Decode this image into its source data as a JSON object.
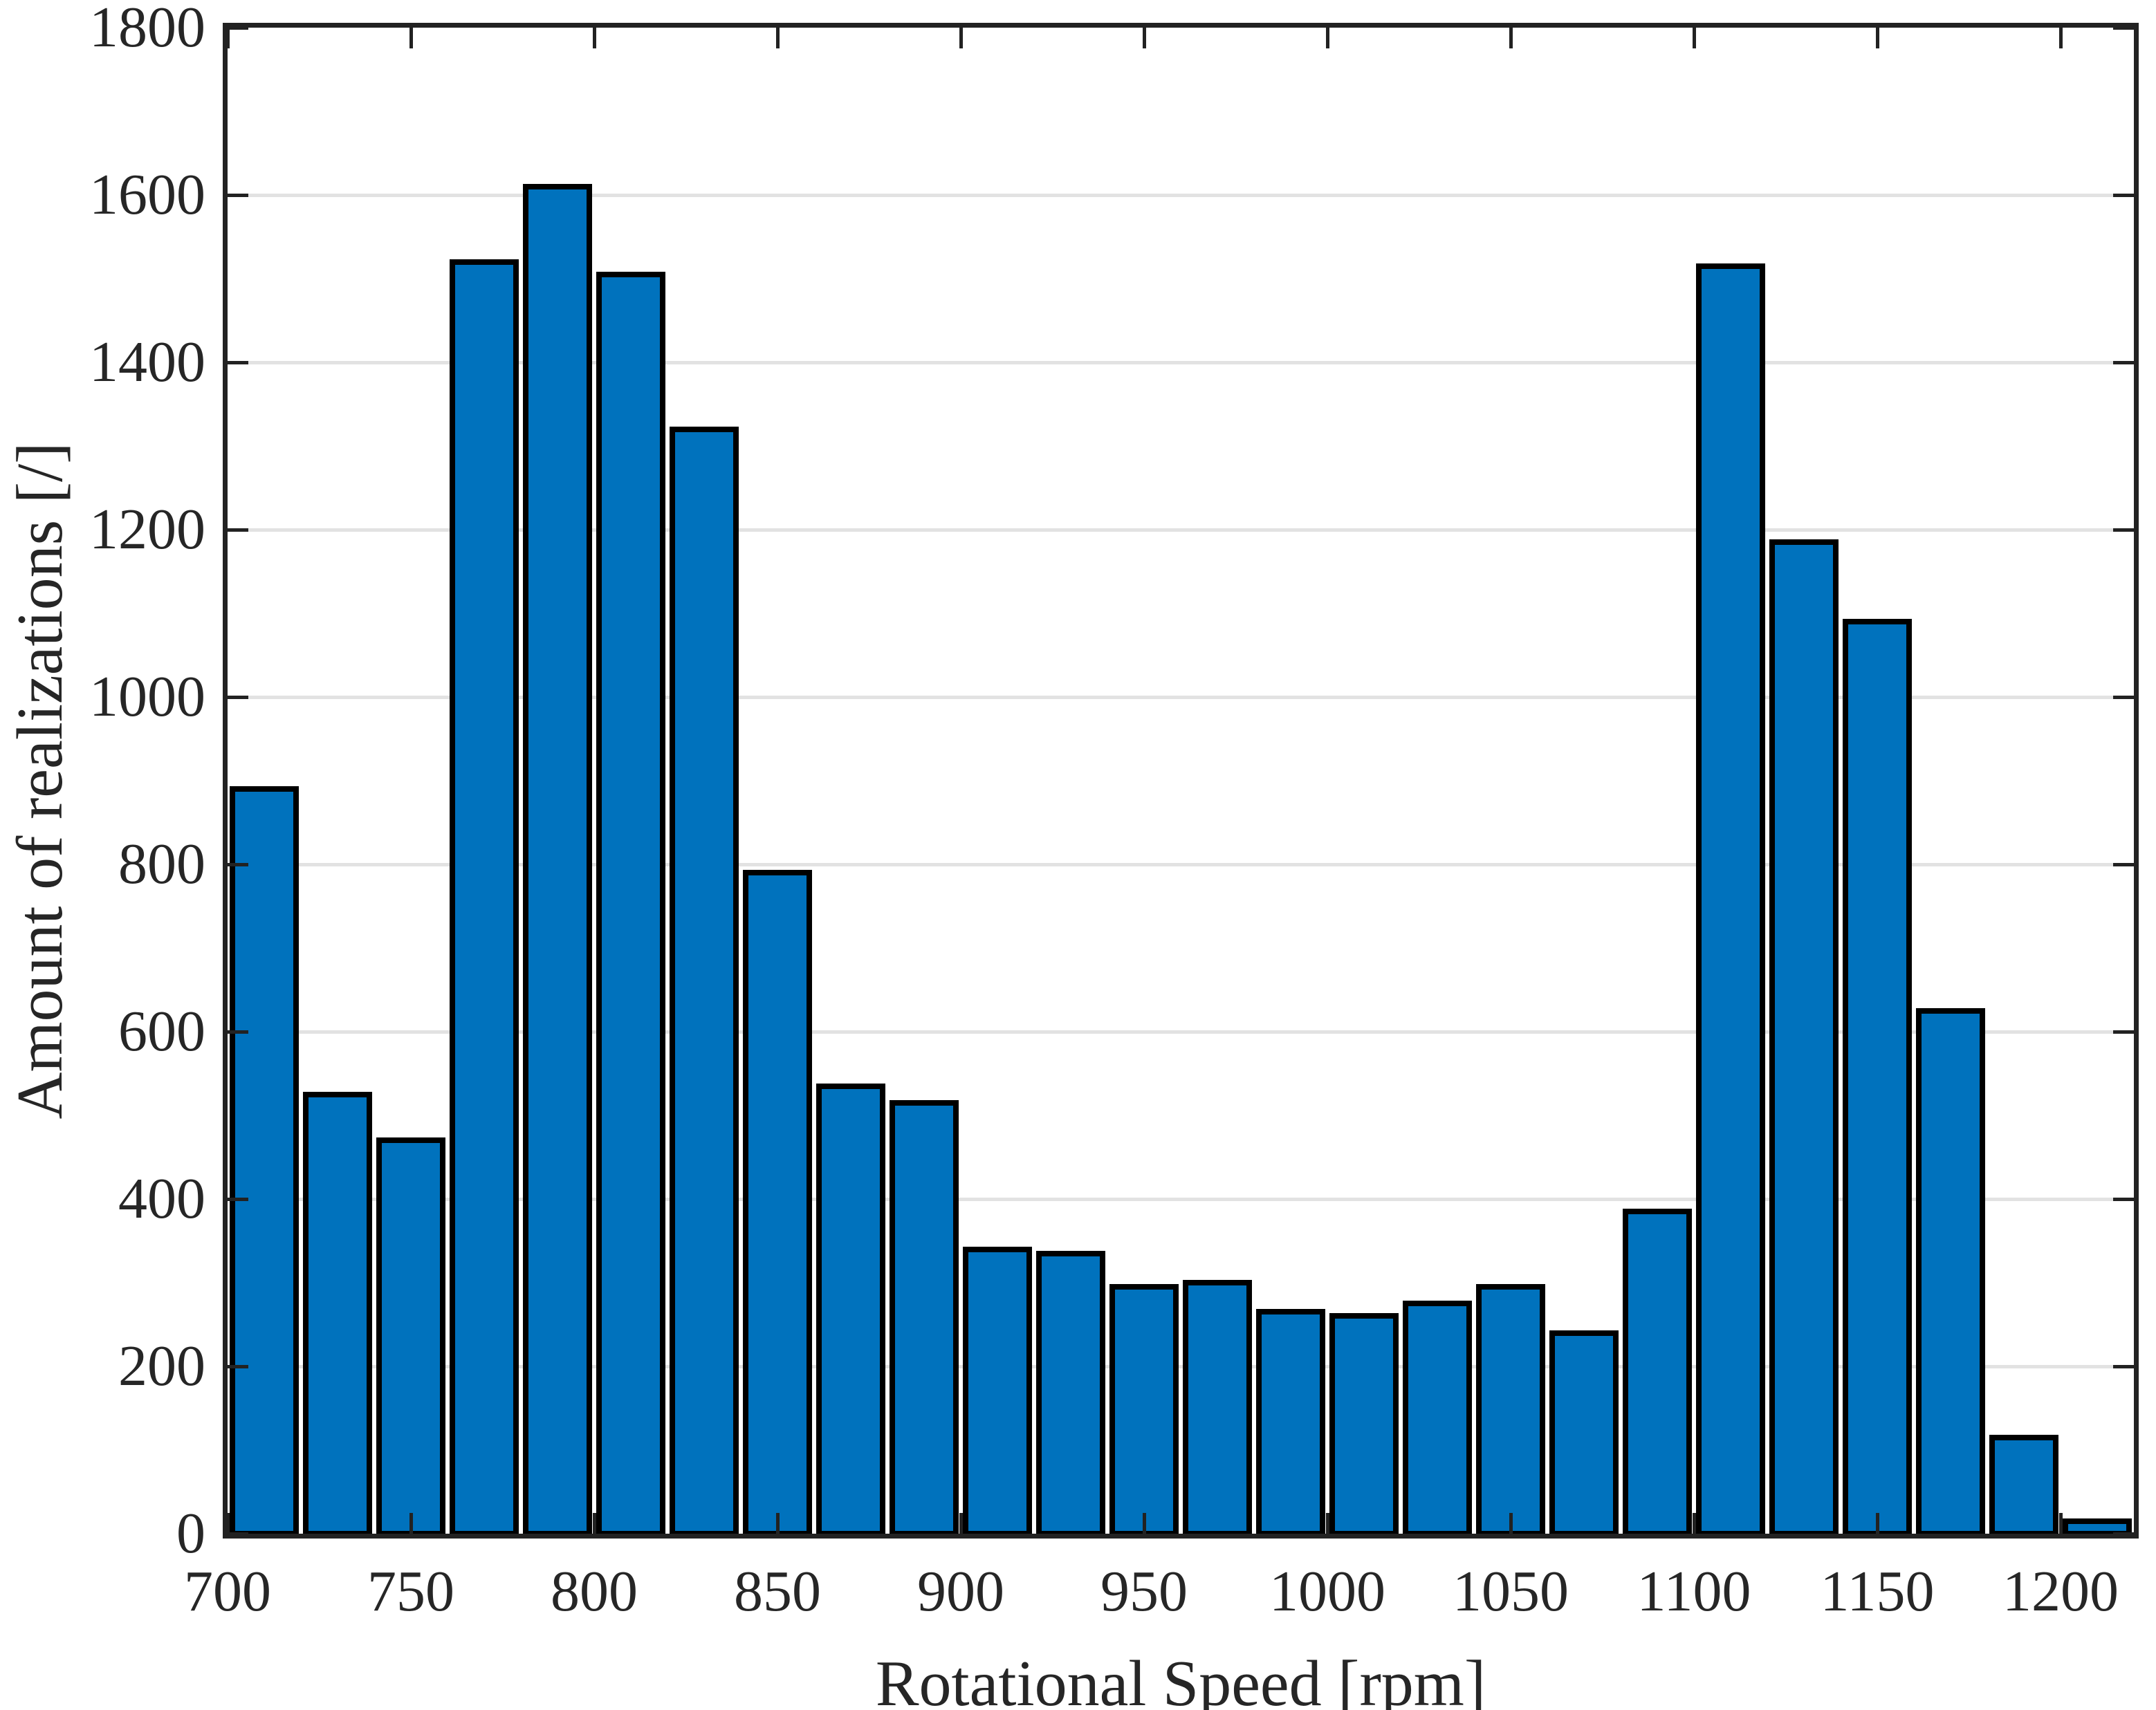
{
  "figure": {
    "xlabel": "Rotational Speed [rpm]",
    "ylabel": "Amount of realizations [/]"
  },
  "chart_data": {
    "type": "bar",
    "subtype": "histogram",
    "title": "",
    "xlabel": "Rotational Speed [rpm]",
    "ylabel": "Amount of realizations [/]",
    "bin_width": 20,
    "bin_edges": [
      700,
      720,
      740,
      760,
      780,
      800,
      820,
      840,
      860,
      880,
      900,
      920,
      940,
      960,
      980,
      1000,
      1020,
      1040,
      1060,
      1080,
      1100,
      1120,
      1140,
      1160,
      1180,
      1200,
      1220
    ],
    "values": [
      890,
      525,
      470,
      1520,
      1610,
      1505,
      1320,
      790,
      535,
      515,
      340,
      335,
      295,
      300,
      265,
      260,
      275,
      295,
      240,
      385,
      1515,
      1185,
      1090,
      625,
      115,
      15
    ],
    "xlim": [
      700,
      1220
    ],
    "ylim": [
      0,
      1800
    ],
    "x_ticks": [
      700,
      750,
      800,
      850,
      900,
      950,
      1000,
      1050,
      1100,
      1150,
      1200
    ],
    "y_ticks": [
      0,
      200,
      400,
      600,
      800,
      1000,
      1200,
      1400,
      1600,
      1800
    ],
    "grid": "horizontal-only",
    "legend": "none",
    "tick_direction": "in",
    "box": true,
    "colors": {
      "bar_fill": "#0072BD",
      "bar_edge": "#000000",
      "grid": "#e2e2e2",
      "axis": "#222222",
      "text": "#262626",
      "background": "#ffffff"
    }
  }
}
